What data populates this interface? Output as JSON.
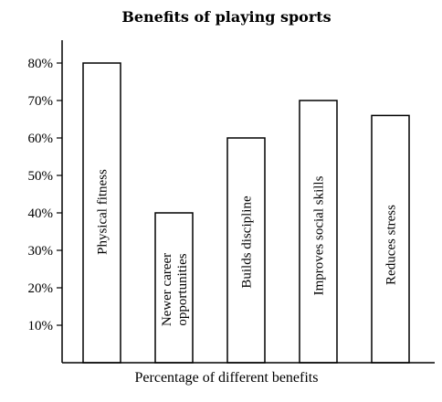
{
  "chart_data": {
    "type": "bar",
    "title": "Benefits of playing sports",
    "xlabel": "Percentage of different benefits",
    "ylabel": "",
    "ylim": [
      0,
      85
    ],
    "yticks": [
      10,
      20,
      30,
      40,
      50,
      60,
      70,
      80
    ],
    "ytick_format": "%",
    "grid": false,
    "bar_color": "#ffffff",
    "bar_stroke": "#000000",
    "categories": [
      [
        "Physical fitness"
      ],
      [
        "Newer career",
        "opportunities"
      ],
      [
        "Builds discipline"
      ],
      [
        "Improves social skills"
      ],
      [
        "Reduces stress"
      ]
    ],
    "values": [
      80,
      40,
      60,
      70,
      66
    ]
  }
}
